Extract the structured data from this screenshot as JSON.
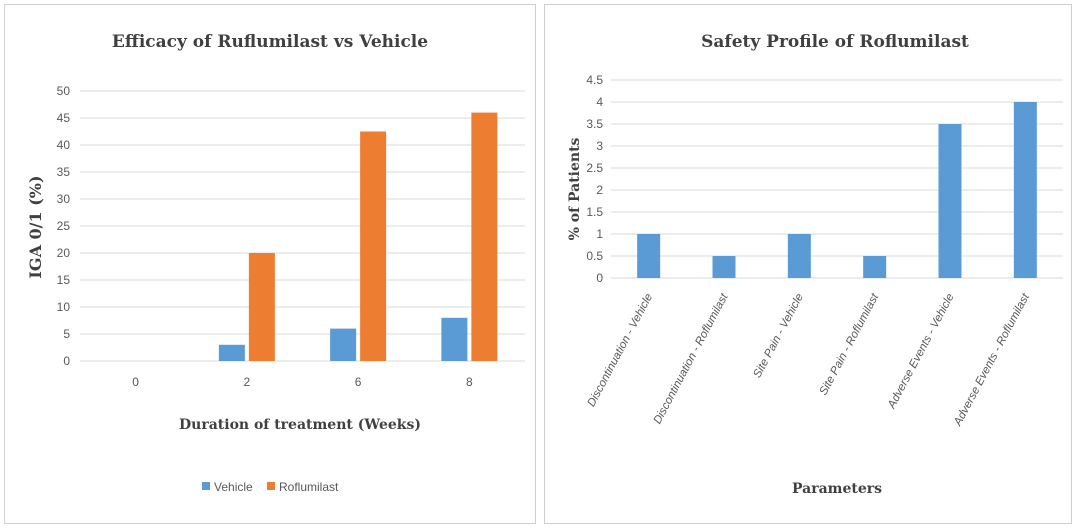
{
  "colors": {
    "vehicle": "#5b9bd5",
    "roflumilast": "#ed7d31",
    "grid": "#d9d9d9"
  },
  "chart_data": [
    {
      "type": "bar",
      "title": "Efficacy of Ruflumilast vs Vehicle",
      "xlabel": "Duration of treatment (Weeks)",
      "ylabel": "IGA 0/1 (%)",
      "categories": [
        "0",
        "2",
        "6",
        "8"
      ],
      "series": [
        {
          "name": "Vehicle",
          "values": [
            0,
            3,
            6,
            8
          ]
        },
        {
          "name": "Roflumilast",
          "values": [
            0,
            20,
            42.5,
            46
          ]
        }
      ],
      "ylim": [
        0,
        50
      ],
      "yticks": [
        "0",
        "5",
        "10",
        "15",
        "20",
        "25",
        "30",
        "35",
        "40",
        "45",
        "50"
      ],
      "grid": true,
      "legend": "bottom"
    },
    {
      "type": "bar",
      "title": "Safety Profile of Roflumilast",
      "xlabel": "Parameters",
      "ylabel": "% of Patients",
      "categories": [
        "Discontinuation - Vehicle",
        "Discontinuation - Roflumilast",
        "Site Pain - Vehicle",
        "Site Pain - Roflumilast",
        "Adverse Events - Vehicle",
        "Adverse Events - Roflumilast"
      ],
      "values": [
        1,
        0.5,
        1,
        0.5,
        3.5,
        4
      ],
      "ylim": [
        0,
        4.5
      ],
      "yticks": [
        "0",
        "0.5",
        "1",
        "1.5",
        "2",
        "2.5",
        "3",
        "3.5",
        "4",
        "4.5"
      ],
      "grid": true
    }
  ]
}
